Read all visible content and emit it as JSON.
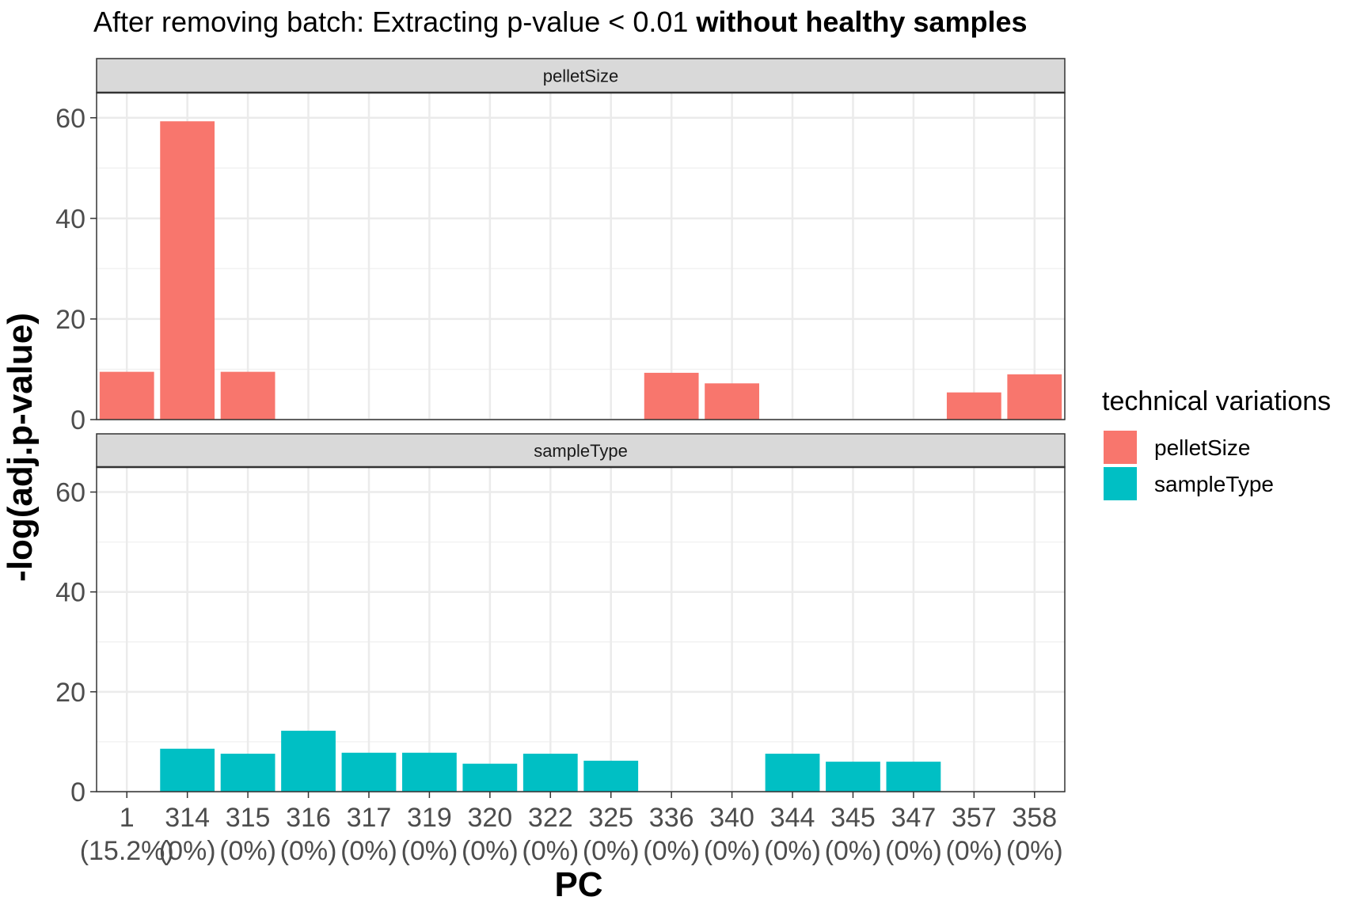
{
  "chart_data": {
    "type": "bar",
    "title": "After removing batch: Extracting p-value < 0.01",
    "title_bold": "without healthy samples",
    "xlabel": "PC",
    "ylabel": "-log(adj.p-value)",
    "ylim": [
      0,
      65
    ],
    "y_ticks": [
      0,
      20,
      40,
      60
    ],
    "grid": true,
    "legend_position": "right",
    "legend_title": "technical variations",
    "categories": [
      "1",
      "314",
      "315",
      "316",
      "317",
      "319",
      "320",
      "322",
      "325",
      "336",
      "340",
      "344",
      "345",
      "347",
      "357",
      "358"
    ],
    "category_sublabels": [
      "(15.2%)",
      "(0%)",
      "(0%)",
      "(0%)",
      "(0%)",
      "(0%)",
      "(0%)",
      "(0%)",
      "(0%)",
      "(0%)",
      "(0%)",
      "(0%)",
      "(0%)",
      "(0%)",
      "(0%)",
      "(0%)"
    ],
    "series": [
      {
        "name": "pelletSize",
        "color": "#F8766D",
        "values": [
          9.5,
          59.3,
          9.5,
          null,
          null,
          null,
          null,
          null,
          null,
          9.3,
          7.2,
          null,
          null,
          null,
          5.4,
          9.0
        ]
      },
      {
        "name": "sampleType",
        "color": "#00BFC4",
        "values": [
          null,
          8.6,
          7.6,
          12.2,
          7.8,
          7.8,
          5.6,
          7.6,
          6.2,
          null,
          null,
          7.6,
          6.0,
          6.0,
          null,
          null
        ]
      }
    ]
  }
}
